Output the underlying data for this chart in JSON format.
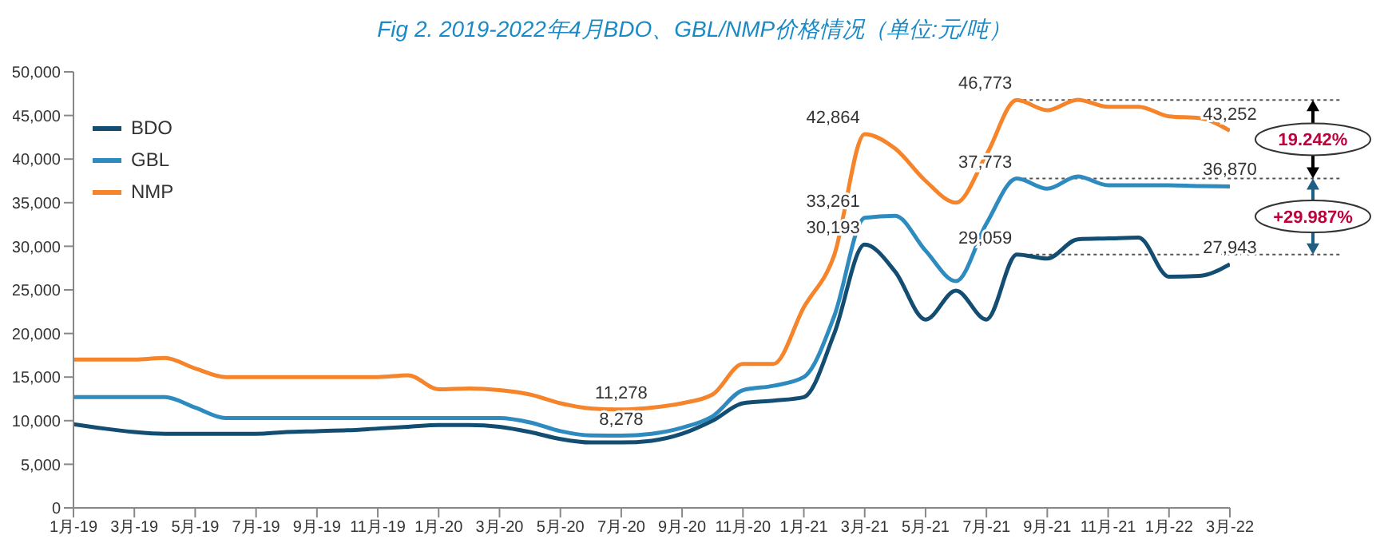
{
  "chart_data": {
    "type": "line",
    "title": "Fig 2. 2019-2022年4月BDO、GBL/NMP价格情况（单位:元/吨）",
    "categories": [
      "1月-19",
      null,
      "3月-19",
      null,
      "5月-19",
      null,
      "7月-19",
      null,
      "9月-19",
      null,
      "11月-19",
      null,
      "1月-20",
      null,
      "3月-20",
      null,
      "5月-20",
      null,
      "7月-20",
      null,
      "9月-20",
      null,
      "11月-20",
      null,
      "1月-21",
      null,
      "3月-21",
      null,
      "5月-21",
      null,
      "7月-21",
      null,
      "9月-21",
      null,
      "11月-21",
      null,
      "1月-22",
      null,
      "3月-22"
    ],
    "series": [
      {
        "name": "BDO",
        "color": "#134e72",
        "values": [
          9600,
          9100,
          8700,
          8500,
          8500,
          8500,
          8500,
          8700,
          8800,
          8900,
          9100,
          9300,
          9500,
          9500,
          9300,
          8700,
          7900,
          7500,
          7500,
          7700,
          8500,
          10000,
          12000,
          12300,
          12700,
          20000,
          30193,
          27100,
          21600,
          24900,
          21600,
          29059,
          28600,
          30800,
          30900,
          31000,
          26500,
          26600,
          27943
        ],
        "value_labels": [
          null,
          null,
          null,
          null,
          null,
          null,
          null,
          null,
          null,
          null,
          null,
          null,
          null,
          null,
          null,
          null,
          null,
          null,
          null,
          null,
          null,
          null,
          null,
          null,
          null,
          null,
          "30,193",
          null,
          null,
          null,
          null,
          "29,059",
          null,
          null,
          null,
          null,
          null,
          null,
          "27,943"
        ]
      },
      {
        "name": "GBL",
        "color": "#2e8bc0",
        "values": [
          12700,
          12700,
          12700,
          12700,
          11500,
          10300,
          10300,
          10300,
          10300,
          10300,
          10300,
          10300,
          10300,
          10300,
          10300,
          9800,
          8800,
          8300,
          8278,
          8500,
          9200,
          10500,
          13500,
          14000,
          15000,
          22000,
          33261,
          33500,
          29500,
          26000,
          32600,
          37773,
          36600,
          38000,
          37000,
          37000,
          37000,
          36900,
          36870
        ],
        "value_labels": [
          null,
          null,
          null,
          null,
          null,
          null,
          null,
          null,
          null,
          null,
          null,
          null,
          null,
          null,
          null,
          null,
          null,
          null,
          "8,278",
          null,
          null,
          null,
          null,
          null,
          null,
          null,
          "33,261",
          null,
          null,
          null,
          null,
          "37,773",
          null,
          null,
          null,
          null,
          null,
          null,
          "36,870"
        ]
      },
      {
        "name": "NMP",
        "color": "#f5842a",
        "values": [
          17000,
          17000,
          17000,
          17200,
          16000,
          15000,
          15000,
          15000,
          15000,
          15000,
          15000,
          15200,
          13600,
          13700,
          13500,
          13000,
          12000,
          11400,
          11278,
          11500,
          12000,
          13000,
          16500,
          16500,
          23000,
          29000,
          42864,
          41200,
          37500,
          35000,
          40500,
          46773,
          45600,
          46800,
          46000,
          46000,
          44900,
          44700,
          43252
        ],
        "value_labels": [
          null,
          null,
          null,
          null,
          null,
          null,
          null,
          null,
          null,
          null,
          null,
          null,
          null,
          null,
          null,
          null,
          null,
          null,
          "11,278",
          null,
          null,
          null,
          null,
          null,
          null,
          null,
          "42,864",
          null,
          null,
          null,
          null,
          "46,773",
          null,
          null,
          null,
          null,
          null,
          null,
          "43,252"
        ]
      }
    ],
    "ylim": [
      0,
      50000
    ],
    "yticks": [
      0,
      {
        "value": 5000,
        "label": "5,000"
      },
      {
        "value": 10000,
        "label": "10,000"
      },
      {
        "value": 15000,
        "label": "15,000"
      },
      {
        "value": 20000,
        "label": "20,000"
      },
      {
        "value": 25000,
        "label": "25,000"
      },
      {
        "value": 30000,
        "label": "30,000"
      },
      {
        "value": 35000,
        "label": "35,000"
      },
      {
        "value": 40000,
        "label": "40,000"
      },
      {
        "value": 45000,
        "label": "45,000"
      },
      {
        "value": 50000,
        "label": "50,000"
      }
    ],
    "grid": false,
    "legend": "top left",
    "marker": "none",
    "line_style": "solid",
    "ref_lines": [
      {
        "axis": "y",
        "value": 46773,
        "color": "#555555",
        "line_style": "dotted"
      },
      {
        "axis": "y",
        "value": 37773,
        "color": "#555555",
        "line_style": "dotted"
      },
      {
        "axis": "y",
        "value": 29059,
        "color": "#555555",
        "line_style": "dotted"
      }
    ],
    "annotations": [
      "19.242%",
      "+29.987%"
    ]
  }
}
